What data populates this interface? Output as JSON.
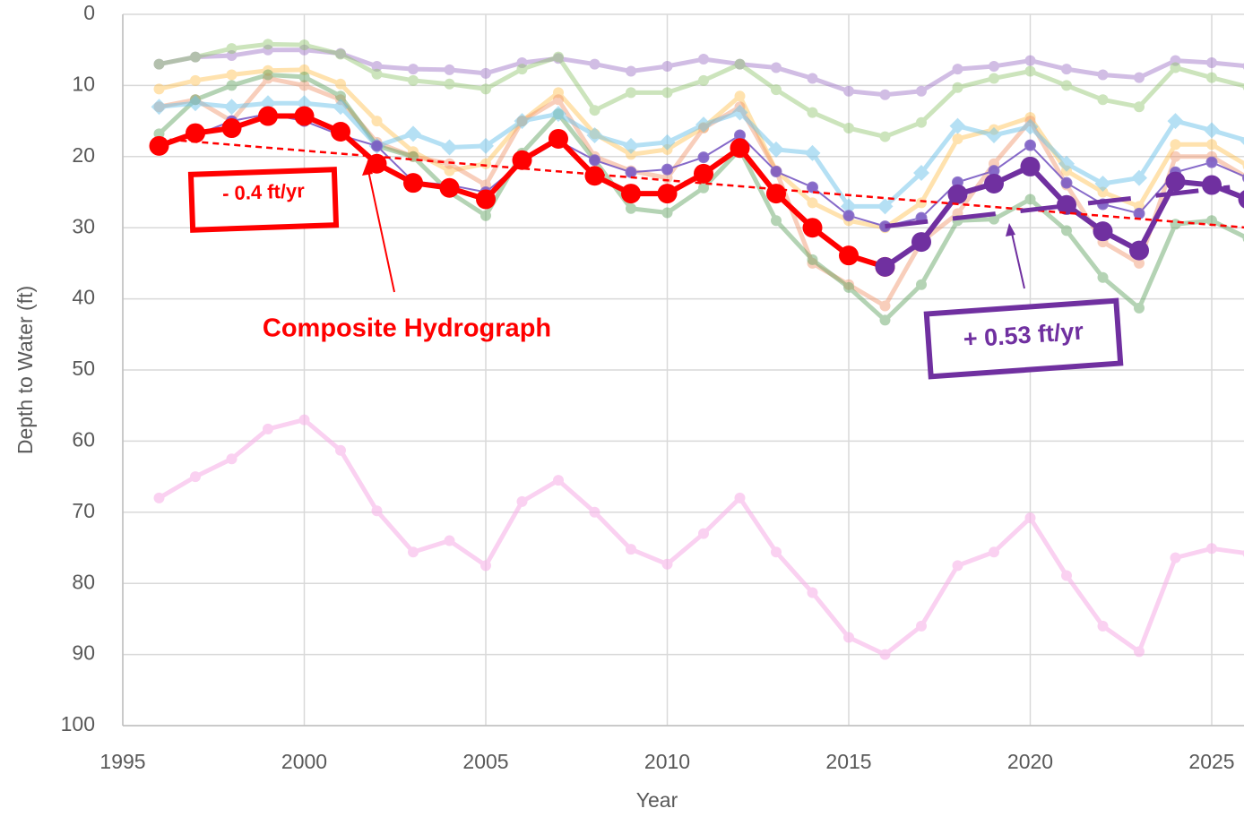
{
  "chart_data": {
    "type": "line",
    "x_label": "Year",
    "y_label": "Depth to Water (ft)",
    "x": [
      1996,
      1997,
      1998,
      1999,
      2000,
      2001,
      2002,
      2003,
      2004,
      2005,
      2006,
      2007,
      2008,
      2009,
      2010,
      2011,
      2012,
      2013,
      2014,
      2015,
      2016,
      2017,
      2018,
      2019,
      2020,
      2021,
      2022,
      2023,
      2024,
      2025,
      2026
    ],
    "xlim": [
      1995,
      2026
    ],
    "xticks": [
      1995,
      2000,
      2005,
      2010,
      2015,
      2020,
      2025
    ],
    "ylim": [
      0,
      100
    ],
    "yticks": [
      0,
      10,
      20,
      30,
      40,
      50,
      60,
      70,
      80,
      90,
      100
    ],
    "y_inverted": true,
    "grid": true,
    "series": [
      {
        "color": "#f7b3e8",
        "opacity": 0.6,
        "marker": "circle",
        "values": [
          68,
          65,
          62.5,
          58.3,
          57,
          61.3,
          69.8,
          75.6,
          74,
          77.5,
          68.5,
          65.5,
          70,
          75.2,
          77.3,
          73,
          68,
          75.6,
          81.3,
          87.6,
          90,
          86,
          77.5,
          75.6,
          70.8,
          78.9,
          86,
          89.6,
          76.4,
          75.1,
          75.8
        ]
      },
      {
        "color": "#9a6fc4",
        "opacity": 0.45,
        "marker": "circle",
        "values": [
          7,
          6,
          5.8,
          5,
          5,
          5.5,
          7.3,
          7.7,
          7.8,
          8.3,
          6.8,
          6.2,
          7,
          8,
          7.3,
          6.3,
          7,
          7.5,
          9,
          10.8,
          11.3,
          10.8,
          7.7,
          7.3,
          6.5,
          7.7,
          8.5,
          8.9,
          6.5,
          6.8,
          7.3
        ]
      },
      {
        "color": "#8fc46c",
        "opacity": 0.45,
        "marker": "circle",
        "values": [
          7,
          6,
          4.8,
          4.2,
          4.3,
          5.6,
          8.4,
          9.3,
          9.8,
          10.5,
          7.7,
          6,
          13.5,
          11,
          11,
          9.3,
          7,
          10.6,
          13.8,
          16,
          17.2,
          15.2,
          10.3,
          9,
          8,
          10,
          12,
          13,
          7.5,
          8.9,
          10.2
        ]
      },
      {
        "color": "#ffc04d",
        "opacity": 0.45,
        "marker": "circle",
        "values": [
          10.5,
          9.3,
          8.5,
          7.9,
          7.8,
          9.8,
          15,
          19.3,
          22,
          21,
          15,
          11,
          16.8,
          19.7,
          19,
          15.9,
          11.5,
          22,
          26.5,
          29,
          30,
          26.5,
          17.5,
          16.2,
          14.5,
          22,
          25,
          27,
          18.3,
          18.3,
          21.3
        ]
      },
      {
        "color": "#f0946a",
        "opacity": 0.45,
        "marker": "circle",
        "values": [
          13,
          12,
          15,
          9,
          10,
          12,
          18,
          20,
          21,
          24,
          15,
          12,
          20,
          22,
          23,
          16,
          13,
          22,
          35,
          38,
          41,
          32,
          28,
          21,
          15,
          24,
          32,
          35,
          20,
          20,
          23
        ]
      },
      {
        "color": "#5aa05a",
        "opacity": 0.45,
        "marker": "circle",
        "values": [
          16.8,
          12,
          10,
          8.5,
          8.8,
          11.5,
          18.5,
          20,
          25,
          28.3,
          19.5,
          14,
          20.5,
          27.3,
          27.9,
          24.4,
          19,
          29,
          34.5,
          38.4,
          43,
          38,
          29,
          28.8,
          26,
          30.4,
          37,
          41.3,
          29.5,
          29,
          31.5
        ]
      },
      {
        "color": "#6ec3ea",
        "opacity": 0.5,
        "marker": "diamond",
        "values": [
          13,
          12.5,
          13,
          12.5,
          12.5,
          13,
          18.5,
          16.8,
          18.7,
          18.5,
          15,
          14,
          17,
          18.5,
          18,
          15.5,
          13.8,
          19,
          19.5,
          27,
          27,
          22.3,
          15.7,
          17,
          15.8,
          21,
          23.8,
          23,
          15,
          16.3,
          17.8
        ]
      },
      {
        "color": "#7a5ac4",
        "opacity": 0.9,
        "marker": "circle",
        "thin": true,
        "values": [
          18.5,
          17,
          15,
          14,
          15,
          17,
          18.5,
          23.5,
          24,
          25,
          20.8,
          17.8,
          20.5,
          22.2,
          21.8,
          20.1,
          17,
          22.1,
          24.3,
          28.3,
          29.8,
          28.6,
          23.6,
          22,
          18.4,
          23.7,
          26.7,
          28,
          22.2,
          20.8,
          23
        ]
      },
      {
        "color": "#ff0000",
        "opacity": 1,
        "marker": "circle",
        "bold": true,
        "values": [
          18.5,
          16.7,
          16,
          14.3,
          14.3,
          16.5,
          21,
          23.7,
          24.4,
          26,
          20.5,
          17.5,
          22.7,
          25.2,
          25.2,
          22.4,
          18.8,
          25.2,
          30,
          33.9,
          35.5,
          null,
          null,
          null,
          null,
          null,
          null,
          null,
          null,
          null,
          null
        ]
      },
      {
        "color": "#7030a0",
        "opacity": 1,
        "marker": "circle",
        "bold": true,
        "values": [
          null,
          null,
          null,
          null,
          null,
          null,
          null,
          null,
          null,
          null,
          null,
          null,
          null,
          null,
          null,
          null,
          null,
          null,
          null,
          null,
          35.5,
          32,
          25.3,
          23.8,
          21.4,
          26.8,
          30.5,
          33.2,
          23.5,
          24,
          26
        ]
      }
    ],
    "trendlines": [
      {
        "color": "#ff0000",
        "style": "dotted",
        "x": [
          1996,
          2026
        ],
        "values": [
          17.5,
          30
        ]
      },
      {
        "color": "#7030a0",
        "style": "dashed",
        "x": [
          2016,
          2025.5
        ],
        "values": [
          29.8,
          24.3
        ]
      }
    ],
    "annotations": [
      "- 0.4 ft/yr",
      "Composite Hydrograph",
      "+ 0.53 ft/yr"
    ]
  }
}
